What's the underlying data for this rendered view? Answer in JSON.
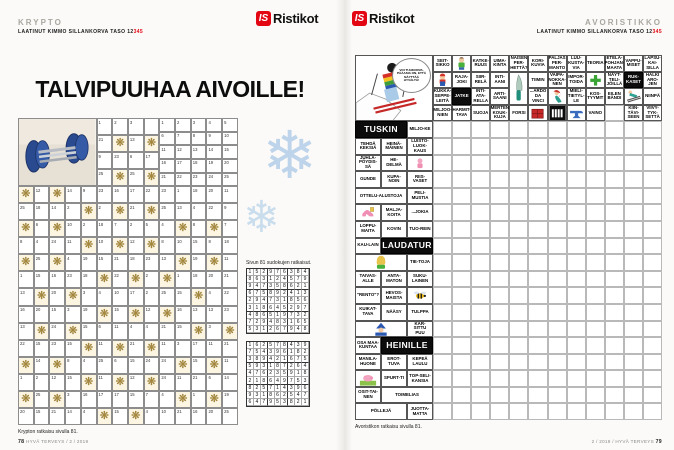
{
  "colors": {
    "accent_red": "#e30613",
    "snowflake_blue": "#bdd4ea",
    "ornament_gold": "#a5873a"
  },
  "logo": {
    "is": "IS",
    "name": "Ristikot"
  },
  "left_page": {
    "section": "KRYPTO",
    "byline": {
      "prefix": "LAATINUT KIMMO SILLANKORVA TASO ",
      "taso_black": "12",
      "taso_red": "345"
    },
    "title": "TALVIPUUHAA AIVOILLE!",
    "caption": "Krypton ratkaisu sivulla 81.",
    "footer": {
      "page": "78",
      "text": " HYVÄ TERVEYS / 2 / 2019"
    },
    "krypto": {
      "photo_icon": "dumbbell-photo",
      "ornament_icon": "gold-snowflake",
      "key_grid": [
        [
          "1",
          "2",
          "3",
          "4",
          "5"
        ],
        [
          "6",
          "7",
          "8",
          "9",
          "10"
        ],
        [
          "11",
          "12",
          "13",
          "14",
          "15"
        ],
        [
          "16",
          "17",
          "18",
          "19",
          "20"
        ],
        [
          "21",
          "22",
          "23",
          "24",
          "25"
        ]
      ],
      "strip": [
        [
          "1",
          "2",
          "3",
          ""
        ],
        [
          "21",
          "*",
          "13",
          "*"
        ],
        [
          "9",
          "23",
          "6",
          "17"
        ],
        [
          "25",
          "*",
          "25",
          "*"
        ]
      ],
      "rows": [
        [
          "*",
          "12",
          "*",
          "14",
          "9",
          "23",
          "16",
          "17",
          "22",
          "23",
          "1",
          "18",
          "20",
          "11"
        ],
        [
          "25",
          "18",
          "14",
          "2",
          "*",
          "2",
          "*",
          "21",
          "*",
          "25",
          "13",
          "4",
          "22",
          "9"
        ],
        [
          "*",
          "6",
          "*",
          "10",
          "2",
          "18",
          "7",
          "2",
          "5",
          "4",
          "*",
          "8",
          "*",
          "7"
        ],
        [
          "8",
          "4",
          "24",
          "11",
          "*",
          "10",
          "*",
          "12",
          "*",
          "8",
          "10",
          "15",
          "8",
          "18"
        ],
        [
          "*",
          "25",
          "*",
          "4",
          "19",
          "15",
          "21",
          "18",
          "23",
          "13",
          "*",
          "19",
          "*",
          "11"
        ],
        [
          "1",
          "15",
          "16",
          "23",
          "18",
          "*",
          "22",
          "*",
          "2",
          "*",
          "1",
          "18",
          "20",
          "21"
        ],
        [
          "13",
          "*",
          "20",
          "*",
          "3",
          "4",
          "10",
          "17",
          "2",
          "25",
          "15",
          "*",
          "4",
          "22"
        ],
        [
          "16",
          "20",
          "15",
          "3",
          "19",
          "*",
          "15",
          "*",
          "12",
          "*",
          "16",
          "13",
          "13",
          "23"
        ],
        [
          "13",
          "*",
          "24",
          "*",
          "15",
          "6",
          "11",
          "4",
          "4",
          "21",
          "15",
          "*",
          "3",
          "*"
        ],
        [
          "22",
          "15",
          "23",
          "15",
          "*",
          "11",
          "*",
          "21",
          "*",
          "11",
          "3",
          "17",
          "11",
          "21"
        ],
        [
          "*",
          "14",
          "*",
          "8",
          "4",
          "25",
          "6",
          "15",
          "24",
          "24",
          "*",
          "15",
          "*",
          "11"
        ],
        [
          "1",
          "2",
          "12",
          "15",
          "*",
          "11",
          "*",
          "12",
          "*",
          "24",
          "11",
          "21",
          "6",
          "14"
        ],
        [
          "*",
          "25",
          "*",
          "3",
          "16",
          "17",
          "17",
          "15",
          "7",
          "4",
          "*",
          "1",
          "*",
          "19"
        ],
        [
          "20",
          "15",
          "21",
          "14",
          "4",
          "*",
          "15",
          "*",
          "4",
          "10",
          "21",
          "16",
          "20",
          "25"
        ]
      ]
    }
  },
  "center": {
    "sudoku_label": "Sivun 81 sudokujen ratkaisut.",
    "snowflake_icon": "snowflake",
    "sudoku1": [
      "152976384",
      "863124579",
      "947358621",
      "675892413",
      "294731856",
      "318645297",
      "486519732",
      "729483165",
      "531267948"
    ],
    "sudoku2": [
      "162578439",
      "754396182",
      "389421675",
      "593187264",
      "476235918",
      "218649753",
      "825714396",
      "931862547",
      "647953821"
    ]
  },
  "right_page": {
    "section": "AVORISTIKKO",
    "byline": {
      "prefix": "LAATINUT KIMMO SILLANKORVA TASO ",
      "taso_black": "12",
      "taso_red": "345"
    },
    "caption": "Avoristikon ratkaisu sivulla 81.",
    "footer": {
      "text": "2 / 2019 / HYVÄ TERVEYS ",
      "page": "79"
    },
    "crossword": {
      "cols": 15,
      "rows": 22,
      "cells": [
        {
          "c": 1,
          "r": 1,
          "cs": 3,
          "rs": 4,
          "t": "img",
          "icon": "skier-downhill",
          "bubble": "VOI TUHKORVA, PÄÄASIA ON, ETTÄ NÄYTTÄÄ HYVÄLTÄ!"
        },
        {
          "c": 4,
          "r": 1,
          "t": "clue",
          "x": "SEIT-SIKKO"
        },
        {
          "c": 5,
          "r": 1,
          "t": "img",
          "icon": "boy"
        },
        {
          "c": 6,
          "r": 1,
          "t": "clue",
          "x": "KATKE-RUUS"
        },
        {
          "c": 7,
          "r": 1,
          "t": "clue",
          "x": "UIMA-KINTA"
        },
        {
          "c": 8,
          "r": 1,
          "t": "clue",
          "x": "NAISEN PER-HETTÄ?"
        },
        {
          "c": 9,
          "r": 1,
          "t": "clue",
          "x": "KORI-KUVIA"
        },
        {
          "c": 10,
          "r": 1,
          "t": "clue",
          "x": "PALJAS PER-MANTO"
        },
        {
          "c": 11,
          "r": 1,
          "t": "clue",
          "x": "LUU-KUSTA-VIA"
        },
        {
          "c": 12,
          "r": 1,
          "t": "clue",
          "x": "TEORIA"
        },
        {
          "c": 13,
          "r": 1,
          "t": "clue",
          "x": "ETELÄ-POHJAN-MAATA"
        },
        {
          "c": 14,
          "r": 1,
          "t": "clue",
          "x": "VAPPU-MISET"
        },
        {
          "c": 15,
          "r": 1,
          "t": "clue",
          "x": "LAPSU-KAI-SILLA"
        },
        {
          "c": 4,
          "r": 2,
          "t": "img",
          "icon": "mario"
        },
        {
          "c": 5,
          "r": 2,
          "t": "clue",
          "x": "RAJA-JOKI"
        },
        {
          "c": 6,
          "r": 2,
          "t": "clue",
          "x": "SIIR-RELÄ"
        },
        {
          "c": 7,
          "r": 2,
          "t": "clue",
          "x": "INTI-AANI"
        },
        {
          "c": 8,
          "r": 2,
          "rs": 2,
          "t": "img",
          "icon": "knife"
        },
        {
          "c": 9,
          "r": 2,
          "t": "clue",
          "x": "TIIMIN"
        },
        {
          "c": 10,
          "r": 2,
          "t": "clue",
          "x": "VAIPA-NOKKA-NEN"
        },
        {
          "c": 11,
          "r": 2,
          "t": "clue",
          "x": "IMPOR-TOIDA"
        },
        {
          "c": 12,
          "r": 2,
          "t": "img",
          "icon": "green-cross"
        },
        {
          "c": 13,
          "r": 2,
          "t": "clue",
          "x": "NÄYT-TELI-JÖILLÄ"
        },
        {
          "c": 14,
          "r": 2,
          "t": "black",
          "x": "RUK-KASET"
        },
        {
          "c": 15,
          "r": 2,
          "t": "clue",
          "x": "HALKI ARO-JEN"
        },
        {
          "c": 4,
          "r": 3,
          "t": "clue",
          "x": "KUKKA-SEPPE-LEITÄ"
        },
        {
          "c": 5,
          "r": 3,
          "t": "black",
          "x": "JATKE"
        },
        {
          "c": 6,
          "r": 3,
          "t": "clue",
          "x": "INTI-ATA-RELLA"
        },
        {
          "c": 7,
          "r": 3,
          "t": "clue",
          "x": "ARTI-SAANI"
        },
        {
          "c": 9,
          "r": 3,
          "t": "clue",
          "x": "...ARDO DA VINCI"
        },
        {
          "c": 10,
          "r": 3,
          "t": "img",
          "icon": "mermaid"
        },
        {
          "c": 11,
          "r": 3,
          "t": "clue",
          "x": "MIELI-TIETYL-LE"
        },
        {
          "c": 12,
          "r": 3,
          "t": "clue",
          "x": "KOS-TYYMIT"
        },
        {
          "c": 13,
          "r": 3,
          "t": "clue",
          "x": "EILEN BÄNDI"
        },
        {
          "c": 14,
          "r": 3,
          "t": "img",
          "icon": "ski-jumper"
        },
        {
          "c": 15,
          "r": 3,
          "t": "clue",
          "x": "NIINPÄ"
        },
        {
          "c": 4,
          "r": 4,
          "t": "clue",
          "x": "MILJOO-NIEN"
        },
        {
          "c": 5,
          "r": 4,
          "t": "clue",
          "x": "HARMIT-TAVA"
        },
        {
          "c": 6,
          "r": 4,
          "t": "clue",
          "x": "SUOJA"
        },
        {
          "c": 7,
          "r": 4,
          "t": "clue",
          "x": "MERTEN KOUK-KUJA"
        },
        {
          "c": 8,
          "r": 4,
          "t": "clue",
          "x": "FORSI"
        },
        {
          "c": 9,
          "r": 4,
          "t": "img",
          "icon": "red-crate"
        },
        {
          "c": 10,
          "r": 4,
          "t": "img",
          "icon": "piano-keys"
        },
        {
          "c": 11,
          "r": 4,
          "t": "img",
          "icon": "anvil"
        },
        {
          "c": 12,
          "r": 4,
          "t": "clue",
          "x": "VAINO"
        },
        {
          "c": 14,
          "r": 4,
          "t": "clue",
          "x": "KIIN-TÄVI-SEEN"
        },
        {
          "c": 15,
          "r": 4,
          "t": "clue",
          "x": "VIIVY-TYK-SETTÄ"
        },
        {
          "c": 1,
          "r": 5,
          "cs": 2,
          "t": "black",
          "x": "TUSKIN",
          "big": true
        },
        {
          "c": 3,
          "r": 5,
          "t": "clue",
          "x": "MILJO-KE"
        },
        {
          "c": 1,
          "r": 6,
          "t": "clue",
          "x": "TEHDÄ KEKSIÄ"
        },
        {
          "c": 2,
          "r": 6,
          "t": "clue",
          "x": "HEINÄ-MÄINEN"
        },
        {
          "c": 3,
          "r": 6,
          "t": "clue",
          "x": "LUISTO-LUOK-KAUS"
        },
        {
          "c": 1,
          "r": 7,
          "t": "clue",
          "x": "JUHLA-PÖYDIS-SÄ"
        },
        {
          "c": 2,
          "r": 7,
          "t": "clue",
          "x": "HE-DELMÄ"
        },
        {
          "c": 3,
          "r": 7,
          "t": "img",
          "icon": "pink-figure"
        },
        {
          "c": 1,
          "r": 8,
          "t": "clue",
          "x": "GUNDE"
        },
        {
          "c": 2,
          "r": 8,
          "t": "clue",
          "x": "KUPA-NOIN"
        },
        {
          "c": 3,
          "r": 8,
          "t": "clue",
          "x": "RIIS-VASET"
        },
        {
          "c": 1,
          "r": 9,
          "cs": 2,
          "t": "clue",
          "x": "OTTELU-ALUSTOJA"
        },
        {
          "c": 3,
          "r": 9,
          "t": "clue",
          "x": "PELI-MUSTIA"
        },
        {
          "c": 1,
          "r": 10,
          "t": "img",
          "icon": "pink-shoe"
        },
        {
          "c": 2,
          "r": 10,
          "t": "clue",
          "x": "MALJA-KOITA"
        },
        {
          "c": 3,
          "r": 10,
          "t": "clue",
          "x": "...JOKIA"
        },
        {
          "c": 1,
          "r": 11,
          "t": "clue",
          "x": "LOPPU-MAITA"
        },
        {
          "c": 2,
          "r": 11,
          "t": "clue",
          "x": "KOVIN"
        },
        {
          "c": 3,
          "r": 11,
          "t": "clue",
          "x": "TUO-REIN"
        },
        {
          "c": 1,
          "r": 12,
          "t": "clue",
          "x": "KAU-LAIN"
        },
        {
          "c": 2,
          "r": 12,
          "cs": 2,
          "t": "black",
          "x": "LAUDATUR",
          "big": true
        },
        {
          "c": 1,
          "r": 13,
          "cs": 2,
          "t": "img",
          "icon": "girl"
        },
        {
          "c": 3,
          "r": 13,
          "t": "clue",
          "x": "TIE-TOJA"
        },
        {
          "c": 1,
          "r": 14,
          "t": "clue",
          "x": "TAIVAS-ALLE"
        },
        {
          "c": 2,
          "r": 14,
          "t": "clue",
          "x": "ANTA-MATON"
        },
        {
          "c": 3,
          "r": 14,
          "t": "clue",
          "x": "SUKU-LAINEN"
        },
        {
          "c": 1,
          "r": 15,
          "t": "clue",
          "x": "\"RENTO\"?"
        },
        {
          "c": 2,
          "r": 15,
          "t": "clue",
          "x": "HEVOS-MAISTA"
        },
        {
          "c": 3,
          "r": 15,
          "t": "img",
          "icon": "wasp"
        },
        {
          "c": 1,
          "r": 16,
          "t": "clue",
          "x": "KUIKAT-TAVA"
        },
        {
          "c": 2,
          "r": 16,
          "t": "clue",
          "x": "NÄÄSY"
        },
        {
          "c": 3,
          "r": 16,
          "t": "clue",
          "x": "TULPPA"
        },
        {
          "c": 1,
          "r": 17,
          "cs": 2,
          "t": "img",
          "icon": "wizard"
        },
        {
          "c": 3,
          "r": 17,
          "t": "clue",
          "x": "KAR-SITTU PUU"
        },
        {
          "c": 1,
          "r": 18,
          "t": "clue",
          "x": "OSA MAA-KUNTAA"
        },
        {
          "c": 2,
          "r": 18,
          "cs": 2,
          "t": "black",
          "x": "HEINILLE",
          "big": true
        },
        {
          "c": 1,
          "r": 19,
          "t": "clue",
          "x": "MANILA-HUONE"
        },
        {
          "c": 2,
          "r": 19,
          "t": "clue",
          "x": "EROT-TUVA"
        },
        {
          "c": 3,
          "r": 19,
          "t": "clue",
          "x": "KEPEÄ LAULU"
        },
        {
          "c": 1,
          "r": 20,
          "t": "img",
          "icon": "pig"
        },
        {
          "c": 2,
          "r": 20,
          "t": "clue",
          "x": "SPURT-TI"
        },
        {
          "c": 3,
          "r": 20,
          "t": "clue",
          "x": "TOP-SELI-KANSIA"
        },
        {
          "c": 1,
          "r": 21,
          "t": "clue",
          "x": "OSIT-TAI-NEN"
        },
        {
          "c": 2,
          "r": 21,
          "cs": 2,
          "t": "clue",
          "x": "TOIMELIAS"
        },
        {
          "c": 1,
          "r": 22,
          "cs": 2,
          "t": "clue",
          "x": "PÖLLEJÄ"
        },
        {
          "c": 3,
          "r": 22,
          "t": "clue",
          "x": "JUOTTA-MATTA"
        }
      ]
    }
  }
}
